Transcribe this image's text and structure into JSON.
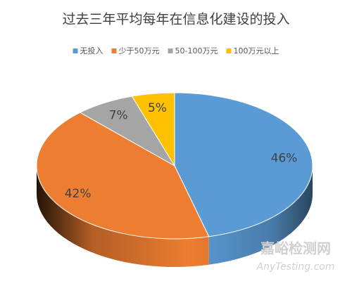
{
  "chart_data": {
    "type": "pie3d",
    "title": "过去三年平均每年在信息化建设的投入",
    "series": [
      {
        "name": "无投入",
        "color": "#5b9bd5"
      },
      {
        "name": "少于50万元",
        "color": "#ed7d31"
      },
      {
        "name": "50-100万元",
        "color": "#a5a5a5"
      },
      {
        "name": "100万元以上",
        "color": "#ffc000"
      }
    ],
    "values": [
      46,
      42,
      7,
      5
    ],
    "value_labels": [
      "46%",
      "42%",
      "7%",
      "5%"
    ],
    "legend": "top",
    "annotations": [
      "嘉峪检测网",
      "AnyTesting.com"
    ]
  }
}
